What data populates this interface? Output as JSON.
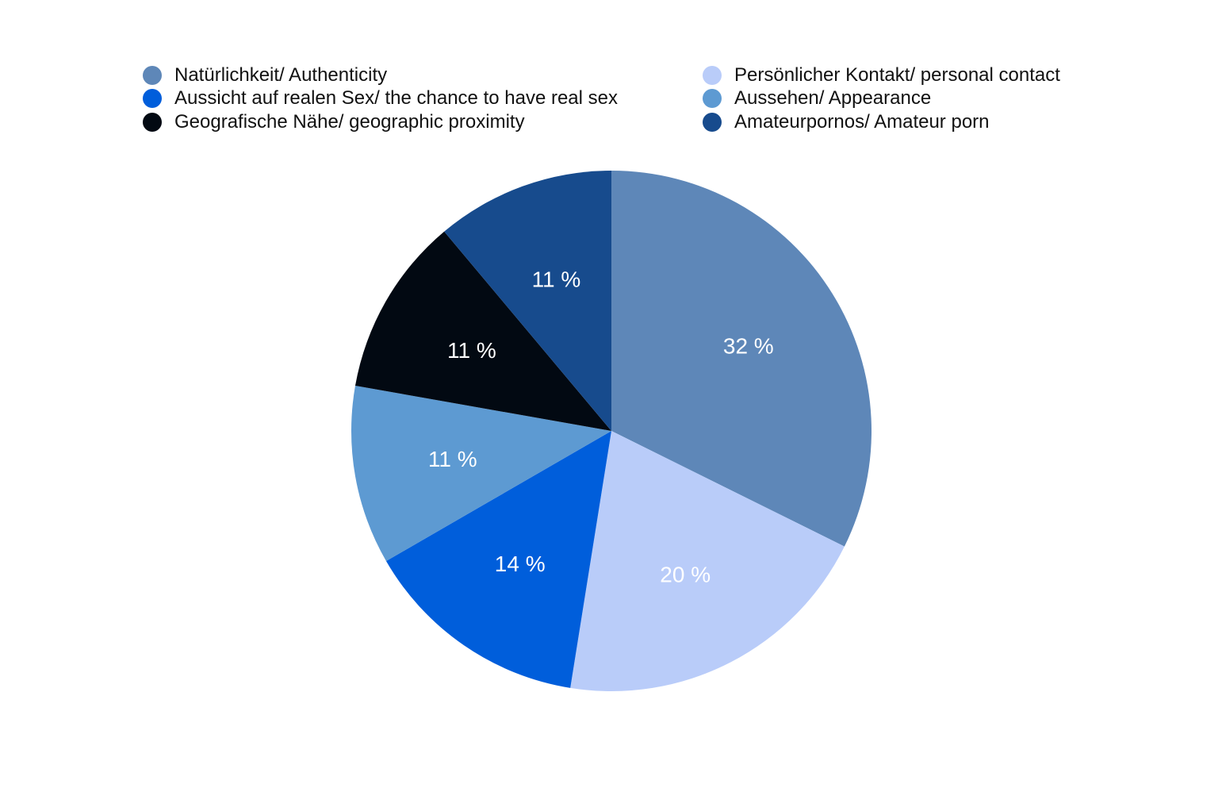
{
  "chart_data": {
    "type": "pie",
    "legend_position": "top",
    "series": [
      {
        "label": "Natürlichkeit/ Authenticity",
        "value": 32,
        "display": "32 %",
        "color": "#5E87B8"
      },
      {
        "label": "Persönlicher Kontakt/ personal contact",
        "value": 20,
        "display": "20 %",
        "color": "#B9CCF9"
      },
      {
        "label": "Aussicht auf realen Sex/ the chance to have real sex",
        "value": 14,
        "display": "14 %",
        "color": "#005EDB"
      },
      {
        "label": "Aussehen/ Appearance",
        "value": 11,
        "display": "11 %",
        "color": "#5D9AD2"
      },
      {
        "label": "Geografische Nähe/ geographic proximity",
        "value": 11,
        "display": "11 %",
        "color": "#020912"
      },
      {
        "label": "Amateurpornos/ Amateur porn",
        "value": 11,
        "display": "11 %",
        "color": "#174B8D"
      }
    ]
  }
}
